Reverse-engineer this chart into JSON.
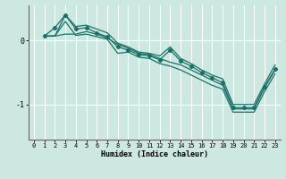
{
  "xlabel": "Humidex (Indice chaleur)",
  "background_color": "#cce8e0",
  "line_color": "#1a7068",
  "grid_color": "#ffffff",
  "xlim": [
    -0.5,
    23.5
  ],
  "ylim": [
    -1.55,
    0.55
  ],
  "yticks": [
    0,
    -1
  ],
  "xticks": [
    0,
    1,
    2,
    3,
    4,
    5,
    6,
    7,
    8,
    9,
    10,
    11,
    12,
    13,
    14,
    15,
    16,
    17,
    18,
    19,
    20,
    21,
    22,
    23
  ],
  "line_main_x": [
    1,
    2,
    3,
    4,
    5,
    6,
    7,
    8,
    9,
    10,
    11,
    12,
    13,
    14,
    15,
    16,
    17,
    18,
    19,
    20,
    21,
    22,
    23
  ],
  "line_main_y": [
    0.07,
    0.2,
    0.4,
    0.18,
    0.2,
    0.12,
    0.06,
    -0.1,
    -0.15,
    -0.22,
    -0.24,
    -0.3,
    -0.15,
    -0.32,
    -0.4,
    -0.5,
    -0.58,
    -0.66,
    -1.05,
    -1.05,
    -1.05,
    -0.72,
    -0.45
  ],
  "line_up_x": [
    1,
    2,
    3,
    4,
    5,
    6,
    7,
    8,
    9,
    10,
    11,
    12,
    13,
    14,
    15,
    16,
    17,
    18,
    19,
    20,
    21,
    22,
    23
  ],
  "line_up_y": [
    0.07,
    0.07,
    0.4,
    0.22,
    0.24,
    0.18,
    0.12,
    -0.04,
    -0.1,
    -0.18,
    -0.2,
    -0.24,
    -0.1,
    -0.28,
    -0.36,
    -0.46,
    -0.54,
    -0.6,
    -1.0,
    -1.0,
    -1.0,
    -0.68,
    -0.38
  ],
  "line_dn_x": [
    1,
    2,
    3,
    4,
    5,
    6,
    7,
    8,
    9,
    10,
    11,
    12,
    13,
    14,
    15,
    16,
    17,
    18,
    19,
    20,
    21,
    22,
    23
  ],
  "line_dn_y": [
    0.07,
    0.07,
    0.3,
    0.08,
    0.1,
    0.06,
    0.02,
    -0.2,
    -0.18,
    -0.26,
    -0.28,
    -0.36,
    -0.4,
    -0.46,
    -0.54,
    -0.62,
    -0.7,
    -0.76,
    -1.12,
    -1.12,
    -1.12,
    -0.8,
    -0.52
  ],
  "line_flat_x": [
    1,
    2,
    3,
    4,
    5,
    6,
    7,
    8,
    9,
    10,
    11,
    12,
    13,
    14,
    15,
    16,
    17,
    18,
    19,
    20,
    21,
    22,
    23
  ],
  "line_flat_y": [
    0.07,
    0.07,
    0.1,
    0.1,
    0.14,
    0.1,
    0.04,
    -0.06,
    -0.12,
    -0.2,
    -0.22,
    -0.28,
    -0.34,
    -0.38,
    -0.46,
    -0.54,
    -0.62,
    -0.7,
    -1.07,
    -1.07,
    -1.07,
    -0.74,
    -0.46
  ]
}
